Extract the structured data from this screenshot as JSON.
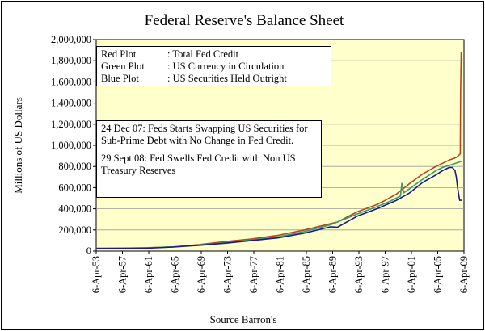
{
  "chart_data": {
    "type": "line",
    "title": "Federal Reserve's Balance Sheet",
    "xlabel": "Source Barron's",
    "ylabel": "Millions of US Dollars",
    "ylim": [
      0,
      2000000
    ],
    "yticks": [
      "0",
      "200,000",
      "400,000",
      "600,000",
      "800,000",
      "1,000,000",
      "1,200,000",
      "1,400,000",
      "1,600,000",
      "1,800,000",
      "2,000,000"
    ],
    "xticks": [
      "6-Apr-53",
      "6-Apr-57",
      "6-Apr-61",
      "6-Apr-65",
      "6-Apr-69",
      "6-Apr-73",
      "6-Apr-77",
      "6-Apr-81",
      "6-Apr-85",
      "6-Apr-89",
      "6-Apr-93",
      "6-Apr-97",
      "6-Apr-01",
      "6-Apr-05",
      "6-Apr-09"
    ],
    "xlim": [
      1953.27,
      2009.27
    ],
    "legend": [
      {
        "key": "Red Plot",
        "text": ": Total Fed Credit",
        "color": "#b5471b"
      },
      {
        "key": "Green Plot",
        "text": ": US Currency in Circulation",
        "color": "#3a9a6a"
      },
      {
        "key": "Blue Plot",
        "text": ": US Securities Held Outright",
        "color": "#1a1a8c"
      }
    ],
    "annotations": [
      "24 Dec 07: Feds Starts Swapping US Securities for Sub-Prime Debt with No Change in Fed Credit.",
      "29 Sept 08:  Fed Swells Fed Credit with Non US Treasury Reserves"
    ],
    "series": [
      {
        "name": "Total Fed Credit",
        "color": "#b5471b",
        "x": [
          1953.3,
          1957,
          1961,
          1965,
          1969,
          1973,
          1977,
          1981,
          1985,
          1989,
          1990,
          1993,
          1996,
          1997,
          1999,
          2001,
          2003,
          2005,
          2006,
          2007,
          2007.9,
          2008.2,
          2008.5,
          2008.7,
          2008.75,
          2008.8,
          2008.85,
          2008.9,
          2008.95
        ],
        "values": [
          26000,
          27000,
          31000,
          40000,
          62000,
          90000,
          115000,
          150000,
          200000,
          260000,
          275000,
          370000,
          440000,
          470000,
          540000,
          640000,
          730000,
          800000,
          830000,
          860000,
          880000,
          890000,
          905000,
          920000,
          1500000,
          1700000,
          1880000,
          1780000,
          1820000
        ]
      },
      {
        "name": "US Currency in Circulation",
        "color": "#3a9a6a",
        "x": [
          1953.3,
          1957,
          1961,
          1965,
          1969,
          1973,
          1977,
          1981,
          1985,
          1989,
          1993,
          1996,
          1998,
          1999.6,
          1999.8,
          2000.1,
          2001,
          2003,
          2005,
          2006,
          2007,
          2008,
          2008.9
        ],
        "values": [
          26000,
          28000,
          31000,
          40000,
          58000,
          80000,
          105000,
          135000,
          185000,
          250000,
          350000,
          420000,
          470000,
          520000,
          640000,
          550000,
          590000,
          680000,
          760000,
          790000,
          810000,
          830000,
          850000
        ]
      },
      {
        "name": "US Securities Held Outright",
        "color": "#1a1a8c",
        "x": [
          1953.3,
          1957,
          1961,
          1965,
          1969,
          1973,
          1977,
          1981,
          1985,
          1989,
          1990,
          1993,
          1996,
          1999,
          2001,
          2003,
          2005,
          2006,
          2007,
          2007.5,
          2007.9,
          2008.1,
          2008.3,
          2008.6,
          2008.95
        ],
        "values": [
          24000,
          25000,
          27000,
          38000,
          55000,
          75000,
          100000,
          125000,
          170000,
          230000,
          225000,
          330000,
          400000,
          480000,
          550000,
          650000,
          720000,
          760000,
          790000,
          790000,
          760000,
          700000,
          600000,
          480000,
          480000
        ]
      }
    ]
  }
}
